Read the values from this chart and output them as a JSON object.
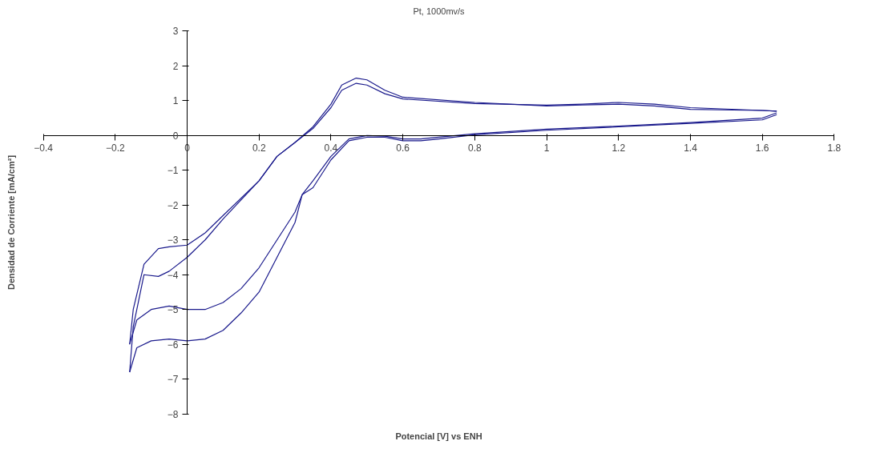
{
  "chart_data": {
    "type": "line",
    "title": "Pt, 1000mv/s",
    "xlabel": "Potencial [V] vs ENH",
    "ylabel": "Densidad de Corriente [mA/cm²]",
    "xlim": [
      -0.4,
      1.8
    ],
    "ylim": [
      -8,
      3
    ],
    "xticks": [
      -0.4,
      -0.2,
      0,
      0.2,
      0.4,
      0.6,
      0.8,
      1,
      1.2,
      1.4,
      1.6,
      1.8
    ],
    "yticks": [
      -8,
      -7,
      -6,
      -5,
      -4,
      -3,
      -2,
      -1,
      0,
      1,
      2,
      3
    ],
    "grid": false,
    "marker": "none",
    "line_style": "solid",
    "series": [
      {
        "color": "#1a1a8c",
        "x": [
          -0.16,
          -0.14,
          -0.1,
          -0.05,
          0,
          0.05,
          0.1,
          0.15,
          0.2,
          0.25,
          0.3,
          0.32,
          0.35,
          0.4,
          0.45,
          0.5,
          0.55,
          0.6,
          0.65,
          0.7,
          0.8,
          1.0,
          1.2,
          1.4,
          1.6,
          1.64
        ],
        "values": [
          -6.0,
          -5.3,
          -5.0,
          -4.9,
          -5.0,
          -5.0,
          -4.8,
          -4.4,
          -3.8,
          -3.0,
          -2.2,
          -1.7,
          -1.3,
          -0.6,
          -0.1,
          0.0,
          -0.02,
          -0.1,
          -0.1,
          -0.05,
          0.05,
          0.18,
          0.27,
          0.37,
          0.5,
          0.65
        ]
      },
      {
        "color": "#1a1a8c",
        "x": [
          -0.16,
          -0.15,
          -0.12,
          -0.08,
          -0.05,
          0,
          0.05,
          0.1,
          0.2,
          0.25,
          0.3,
          0.35,
          0.4,
          0.43,
          0.47,
          0.5,
          0.55,
          0.6,
          0.8,
          1.0,
          1.1,
          1.2,
          1.3,
          1.4,
          1.6,
          1.64
        ],
        "values": [
          -6.0,
          -5.0,
          -3.7,
          -3.25,
          -3.2,
          -3.15,
          -2.8,
          -2.3,
          -1.3,
          -0.6,
          -0.2,
          0.2,
          0.8,
          1.3,
          1.5,
          1.45,
          1.2,
          1.05,
          0.92,
          0.87,
          0.9,
          0.95,
          0.9,
          0.8,
          0.72,
          0.7
        ]
      },
      {
        "color": "#1a1a8c",
        "x": [
          -0.16,
          -0.14,
          -0.1,
          -0.05,
          0,
          0.05,
          0.1,
          0.15,
          0.2,
          0.25,
          0.3,
          0.32,
          0.35,
          0.4,
          0.45,
          0.5,
          0.55,
          0.6,
          0.65,
          0.7,
          0.8,
          1.0,
          1.2,
          1.4,
          1.6,
          1.64
        ],
        "values": [
          -6.8,
          -6.1,
          -5.9,
          -5.85,
          -5.9,
          -5.85,
          -5.6,
          -5.1,
          -4.5,
          -3.5,
          -2.5,
          -1.7,
          -1.5,
          -0.7,
          -0.15,
          -0.05,
          -0.05,
          -0.15,
          -0.15,
          -0.1,
          0.02,
          0.15,
          0.25,
          0.35,
          0.45,
          0.6
        ]
      },
      {
        "color": "#1a1a8c",
        "x": [
          -0.16,
          -0.15,
          -0.12,
          -0.08,
          -0.05,
          0,
          0.05,
          0.1,
          0.2,
          0.25,
          0.3,
          0.35,
          0.4,
          0.43,
          0.47,
          0.5,
          0.55,
          0.6,
          0.8,
          1.0,
          1.1,
          1.2,
          1.3,
          1.4,
          1.6,
          1.64
        ],
        "values": [
          -6.8,
          -5.5,
          -4.0,
          -4.05,
          -3.9,
          -3.5,
          -3.0,
          -2.4,
          -1.3,
          -0.6,
          -0.2,
          0.25,
          0.9,
          1.45,
          1.65,
          1.6,
          1.3,
          1.1,
          0.95,
          0.85,
          0.88,
          0.9,
          0.85,
          0.75,
          0.72,
          0.7
        ]
      }
    ]
  }
}
